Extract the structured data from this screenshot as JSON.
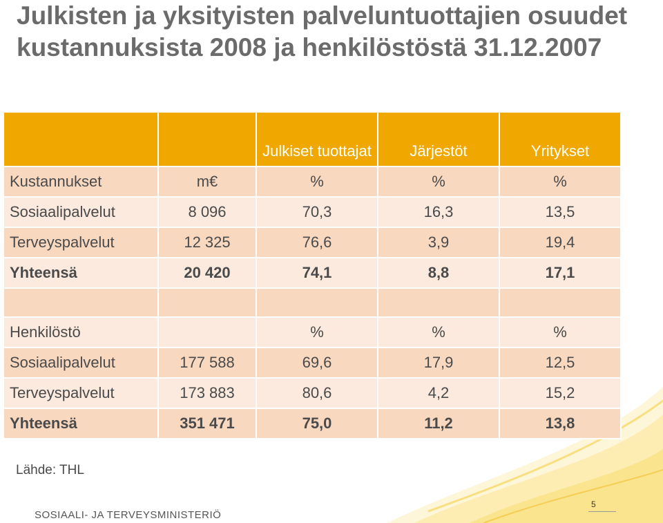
{
  "slide": {
    "title": "Julkisten ja yksityisten palveluntuottajien osuudet kustannuksista 2008 ja henkilöstöstä 31.12.2007",
    "source": "Lähde: THL",
    "ministry": "SOSIAALI- JA TERVEYSMINISTERIÖ",
    "page_number": "5"
  },
  "table": {
    "header": [
      "",
      "",
      "Julkiset tuottajat",
      "Järjestöt",
      "Yritykset"
    ],
    "costs_header": [
      "Kustannukset",
      "m€",
      "%",
      "%",
      "%"
    ],
    "costs_rows": [
      [
        "Sosiaalipalvelut",
        "8 096",
        "70,3",
        "16,3",
        "13,5"
      ],
      [
        "Terveyspalvelut",
        "12 325",
        "76,6",
        "3,9",
        "19,4"
      ]
    ],
    "costs_total": [
      "Yhteensä",
      "20 420",
      "74,1",
      "8,8",
      "17,1"
    ],
    "staff_header": [
      "Henkilöstö",
      "",
      "%",
      "%",
      "%"
    ],
    "staff_rows": [
      [
        "Sosiaalipalvelut",
        "177 588",
        "69,6",
        "17,9",
        "12,5"
      ],
      [
        "Terveyspalvelut",
        "173 883",
        "80,6",
        "4,2",
        "15,2"
      ]
    ],
    "staff_total": [
      "Yhteensä",
      "351 471",
      "75,0",
      "11,2",
      "13,8"
    ]
  },
  "colors": {
    "header_bg": "#f0a800",
    "row_dark": "#f9d8c0",
    "row_light": "#fbeadd",
    "title_text": "#6b6b6b"
  }
}
